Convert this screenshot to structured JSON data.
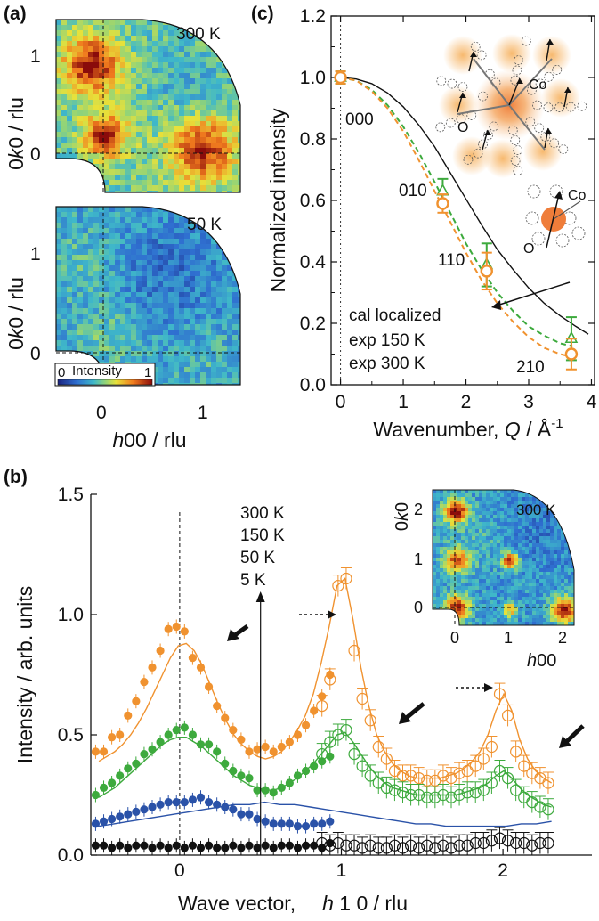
{
  "panel_labels": {
    "a": "(a)",
    "b": "(b)",
    "c": "(c)"
  },
  "colors": {
    "orange": "#f0922f",
    "green": "#3daa3d",
    "blue": "#2a52a8",
    "black": "#111111",
    "ball": "#ef7d3a",
    "co_label": "#d9602a"
  },
  "panel_a": {
    "maps": [
      {
        "temperature": "300 K",
        "level": "high"
      },
      {
        "temperature": "50 K",
        "level": "low"
      }
    ],
    "ylabel_pre": "0",
    "ylabel_italic": "k",
    "ylabel_post": "0 / rlu",
    "xlabel_italic": "h",
    "xlabel_post": "00 / rlu",
    "xticks": [
      "0",
      "1"
    ],
    "yticks": [
      "0",
      "1"
    ],
    "colorbar": {
      "label": "Intensity",
      "min": "0",
      "max": "1"
    }
  },
  "chart_data": [
    {
      "id": "c",
      "type": "line",
      "title": "",
      "xlabel_pre": "Wavenumber, ",
      "xlabel_italic": "Q",
      "xlabel_post": " / Å",
      "xlabel_sup": "-1",
      "ylabel": "Normalized intensity",
      "xlim": [
        -0.15,
        4.05
      ],
      "ylim": [
        0,
        1.2
      ],
      "xticks": [
        0,
        1,
        2,
        3,
        4
      ],
      "yticks": [
        0.0,
        0.2,
        0.4,
        0.6,
        0.8,
        1.0,
        1.2
      ],
      "ytick_labels": [
        "0.0",
        "0.2",
        "0.4",
        "0.6",
        "0.8",
        "1.0",
        "1.2"
      ],
      "series": [
        {
          "name": "cal localized",
          "style": "solid",
          "color": "#111111",
          "x": [
            0,
            0.25,
            0.5,
            0.75,
            1.0,
            1.25,
            1.5,
            1.75,
            2.0,
            2.25,
            2.5,
            2.75,
            3.0,
            3.25,
            3.5,
            3.75,
            3.95
          ],
          "y": [
            1.0,
            0.995,
            0.98,
            0.95,
            0.905,
            0.845,
            0.775,
            0.69,
            0.605,
            0.52,
            0.44,
            0.375,
            0.315,
            0.265,
            0.225,
            0.19,
            0.165
          ]
        },
        {
          "name": "exp 150 K",
          "style": "dashed",
          "color": "#3daa3d",
          "x": [
            0,
            0.25,
            0.5,
            0.75,
            1.0,
            1.25,
            1.5,
            1.75,
            2.0,
            2.25,
            2.5,
            2.75,
            3.0,
            3.25,
            3.5,
            3.7
          ],
          "y": [
            1.0,
            0.99,
            0.96,
            0.91,
            0.84,
            0.755,
            0.66,
            0.56,
            0.46,
            0.375,
            0.3,
            0.24,
            0.19,
            0.16,
            0.135,
            0.125
          ]
        },
        {
          "name": "exp 300 K",
          "style": "dashed",
          "color": "#f0922f",
          "x": [
            0,
            0.25,
            0.5,
            0.75,
            1.0,
            1.25,
            1.5,
            1.75,
            2.0,
            2.25,
            2.5,
            2.75,
            3.0,
            3.25,
            3.5,
            3.7
          ],
          "y": [
            1.0,
            0.99,
            0.955,
            0.9,
            0.825,
            0.73,
            0.63,
            0.53,
            0.43,
            0.34,
            0.265,
            0.205,
            0.155,
            0.12,
            0.1,
            0.09
          ]
        }
      ],
      "points": [
        {
          "series": "exp 150 K",
          "marker": "triangle",
          "color": "#3daa3d",
          "x": [
            0,
            1.63,
            2.33,
            3.68
          ],
          "y": [
            1.0,
            0.63,
            0.39,
            0.15
          ],
          "err": [
            0.02,
            0.04,
            0.07,
            0.07
          ]
        },
        {
          "series": "exp 300 K",
          "marker": "circle",
          "color": "#f0922f",
          "x": [
            0,
            1.63,
            2.33,
            3.68
          ],
          "y": [
            1.0,
            0.59,
            0.37,
            0.1
          ],
          "err": [
            0.02,
            0.03,
            0.06,
            0.05
          ]
        }
      ],
      "point_labels": [
        "000",
        "010",
        "110",
        "210"
      ],
      "legend": [
        "cal localized",
        "exp 150 K",
        "exp 300 K"
      ],
      "diagram_labels": {
        "co": "Co",
        "o": "O"
      }
    },
    {
      "id": "b",
      "type": "scatter",
      "xlabel_pre": "Wave vector,",
      "xlabel_italic": "h",
      "xlabel_post": " 1 0 / rlu",
      "ylabel": "Intensity / arb. units",
      "xlim": [
        -0.55,
        2.55
      ],
      "ylim": [
        0,
        1.5
      ],
      "xticks": [
        0,
        1,
        2
      ],
      "yticks": [
        0.0,
        0.5,
        1.0,
        1.5
      ],
      "ytick_labels": [
        "0.0",
        "0.5",
        "1.0",
        "1.5"
      ],
      "x_filled": [
        -0.52,
        -0.47,
        -0.42,
        -0.37,
        -0.32,
        -0.27,
        -0.22,
        -0.17,
        -0.12,
        -0.07,
        -0.02,
        0.03,
        0.08,
        0.13,
        0.18,
        0.23,
        0.28,
        0.33,
        0.38,
        0.43,
        0.48,
        0.53,
        0.58,
        0.63,
        0.68,
        0.73,
        0.78,
        0.83,
        0.88,
        0.93
      ],
      "x_open": [
        0.88,
        0.93,
        0.98,
        1.03,
        1.08,
        1.13,
        1.18,
        1.23,
        1.28,
        1.33,
        1.38,
        1.43,
        1.48,
        1.53,
        1.58,
        1.63,
        1.68,
        1.73,
        1.78,
        1.83,
        1.88,
        1.93,
        1.98,
        2.03,
        2.08,
        2.13,
        2.18,
        2.23,
        2.28
      ],
      "series": [
        {
          "name": "300 K",
          "color": "#f0922f",
          "filled": [
            0.43,
            0.43,
            0.49,
            0.5,
            0.58,
            0.64,
            0.72,
            0.78,
            0.85,
            0.94,
            0.95,
            0.93,
            0.82,
            0.78,
            0.7,
            0.62,
            0.57,
            0.52,
            0.48,
            0.43,
            0.44,
            0.45,
            0.43,
            0.45,
            0.47,
            0.5,
            0.54,
            0.6,
            0.66,
            0.75
          ],
          "open": [
            0.62,
            0.73,
            1.12,
            1.15,
            0.85,
            0.65,
            0.56,
            0.45,
            0.4,
            0.35,
            0.33,
            0.33,
            0.32,
            0.31,
            0.31,
            0.33,
            0.32,
            0.34,
            0.35,
            0.37,
            0.4,
            0.45,
            0.67,
            0.58,
            0.43,
            0.37,
            0.34,
            0.32,
            0.3
          ],
          "fit": [
            0.39,
            0.41,
            0.43,
            0.46,
            0.5,
            0.55,
            0.61,
            0.68,
            0.75,
            0.82,
            0.87,
            0.88,
            0.85,
            0.79,
            0.71,
            0.63,
            0.56,
            0.5,
            0.46,
            0.43,
            0.41,
            0.4,
            0.41,
            0.43,
            0.47,
            0.52,
            0.58,
            0.67,
            0.8,
            0.95,
            1.12,
            1.15,
            0.98,
            0.78,
            0.62,
            0.5,
            0.43,
            0.38,
            0.35,
            0.33,
            0.32,
            0.32,
            0.32,
            0.32,
            0.33,
            0.34,
            0.36,
            0.39,
            0.43,
            0.5,
            0.6,
            0.67,
            0.6,
            0.48,
            0.4,
            0.35,
            0.32,
            0.3
          ]
        },
        {
          "name": "150 K",
          "color": "#3daa3d",
          "filled": [
            0.25,
            0.28,
            0.3,
            0.33,
            0.36,
            0.38,
            0.42,
            0.44,
            0.47,
            0.5,
            0.52,
            0.53,
            0.5,
            0.46,
            0.46,
            0.43,
            0.38,
            0.35,
            0.33,
            0.32,
            0.27,
            0.27,
            0.26,
            0.28,
            0.3,
            0.33,
            0.35,
            0.37,
            0.39,
            0.41
          ],
          "open": [
            0.42,
            0.47,
            0.5,
            0.52,
            0.42,
            0.37,
            0.33,
            0.3,
            0.28,
            0.27,
            0.26,
            0.25,
            0.25,
            0.24,
            0.24,
            0.25,
            0.24,
            0.25,
            0.26,
            0.26,
            0.27,
            0.3,
            0.35,
            0.32,
            0.27,
            0.24,
            0.22,
            0.2,
            0.19
          ],
          "fit": [
            0.24,
            0.26,
            0.28,
            0.31,
            0.34,
            0.37,
            0.4,
            0.43,
            0.46,
            0.48,
            0.49,
            0.49,
            0.47,
            0.45,
            0.42,
            0.39,
            0.36,
            0.33,
            0.31,
            0.29,
            0.28,
            0.27,
            0.27,
            0.28,
            0.3,
            0.32,
            0.35,
            0.38,
            0.42,
            0.46,
            0.5,
            0.51,
            0.47,
            0.42,
            0.37,
            0.33,
            0.3,
            0.28,
            0.27,
            0.26,
            0.25,
            0.25,
            0.25,
            0.25,
            0.25,
            0.25,
            0.26,
            0.27,
            0.28,
            0.3,
            0.33,
            0.35,
            0.32,
            0.28,
            0.25,
            0.23,
            0.21,
            0.2
          ]
        },
        {
          "name": "50 K",
          "color": "#2a52a8",
          "filled": [
            0.13,
            0.14,
            0.15,
            0.16,
            0.17,
            0.18,
            0.19,
            0.2,
            0.21,
            0.22,
            0.22,
            0.22,
            0.23,
            0.24,
            0.22,
            0.21,
            0.2,
            0.19,
            0.17,
            0.17,
            0.15,
            0.14,
            0.13,
            0.13,
            0.13,
            0.12,
            0.12,
            0.13,
            0.13,
            0.14
          ],
          "fit": [
            0.12,
            0.13,
            0.14,
            0.15,
            0.16,
            0.17,
            0.18,
            0.19,
            0.2,
            0.21,
            0.21,
            0.22,
            0.21,
            0.21,
            0.2,
            0.19,
            0.18,
            0.17,
            0.16,
            0.15,
            0.14,
            0.13,
            0.13,
            0.12,
            0.12,
            0.12,
            0.12,
            0.12,
            0.13,
            0.13,
            0.14
          ]
        },
        {
          "name": "5 K",
          "color": "#111111",
          "filled": [
            0.04,
            0.04,
            0.03,
            0.04,
            0.03,
            0.04,
            0.04,
            0.03,
            0.04,
            0.03,
            0.04,
            0.03,
            0.04,
            0.03,
            0.04,
            0.03,
            0.03,
            0.04,
            0.03,
            0.04,
            0.03,
            0.04,
            0.03,
            0.04,
            0.04,
            0.03,
            0.04,
            0.04,
            0.03,
            0.05
          ],
          "open": [
            0.05,
            0.04,
            0.05,
            0.04,
            0.04,
            0.03,
            0.04,
            0.03,
            0.03,
            0.04,
            0.03,
            0.04,
            0.03,
            0.04,
            0.03,
            0.04,
            0.03,
            0.04,
            0.04,
            0.05,
            0.05,
            0.06,
            0.07,
            0.06,
            0.05,
            0.05,
            0.04,
            0.05,
            0.05
          ]
        }
      ],
      "legend": [
        "300 K",
        "150 K",
        "50 K",
        "5 K"
      ],
      "inset": {
        "temperature": "300 K",
        "xlabel_italic": "h",
        "xlabel_post": "00",
        "ylabel_pre": "0",
        "ylabel_italic": "k",
        "ylabel_post": "0",
        "xticks": [
          "0",
          "1",
          "2"
        ],
        "yticks": [
          "0",
          "1",
          "2"
        ]
      }
    }
  ]
}
